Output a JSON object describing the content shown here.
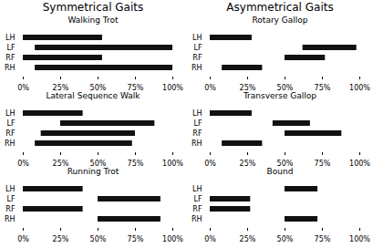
{
  "chart_data": [
    {
      "type": "bar",
      "orientation": "horizontal",
      "subtitle": "Symmetrical Gaits",
      "title": "Walking Trot",
      "categories": [
        "LH",
        "LF",
        "RF",
        "RH"
      ],
      "values": [
        [
          0,
          53
        ],
        [
          8,
          100
        ],
        [
          0,
          53
        ],
        [
          8,
          100
        ]
      ],
      "color": "#111111",
      "xlim": [
        0,
        100
      ],
      "xticks": [
        {
          "value": 0,
          "label": "0%"
        },
        {
          "value": 25,
          "label": "25%"
        },
        {
          "value": 50,
          "label": "50%"
        },
        {
          "value": 75,
          "label": "75%"
        },
        {
          "value": 100,
          "label": "100%"
        }
      ],
      "grid": false
    },
    {
      "type": "bar",
      "orientation": "horizontal",
      "subtitle": "Asymmetrical Gaits",
      "title": "Rotary Gallop",
      "categories": [
        "LH",
        "LF",
        "RF",
        "RH"
      ],
      "values": [
        [
          0,
          28
        ],
        [
          62,
          98
        ],
        [
          50,
          77
        ],
        [
          8,
          35
        ]
      ],
      "color": "#111111",
      "xlim": [
        0,
        100
      ],
      "xticks": [
        {
          "value": 0,
          "label": "0%"
        },
        {
          "value": 25,
          "label": "25%"
        },
        {
          "value": 50,
          "label": "50%"
        },
        {
          "value": 75,
          "label": "75%"
        },
        {
          "value": 100,
          "label": "100%"
        }
      ],
      "grid": false
    },
    {
      "type": "bar",
      "orientation": "horizontal",
      "title": "Lateral Sequence Walk",
      "categories": [
        "LH",
        "LF",
        "RF",
        "RH"
      ],
      "values": [
        [
          0,
          40
        ],
        [
          25,
          88
        ],
        [
          12,
          75
        ],
        [
          8,
          73
        ]
      ],
      "color": "#111111",
      "xlim": [
        0,
        100
      ],
      "xticks": [
        {
          "value": 0,
          "label": "0%"
        },
        {
          "value": 25,
          "label": "25%"
        },
        {
          "value": 50,
          "label": "50%"
        },
        {
          "value": 75,
          "label": "75%"
        },
        {
          "value": 100,
          "label": "100%"
        }
      ],
      "grid": false
    },
    {
      "type": "bar",
      "orientation": "horizontal",
      "title": "Transverse Gallop",
      "categories": [
        "LH",
        "LF",
        "RF",
        "RH"
      ],
      "values": [
        [
          0,
          28
        ],
        [
          42,
          67
        ],
        [
          50,
          88
        ],
        [
          8,
          35
        ]
      ],
      "color": "#111111",
      "xlim": [
        0,
        100
      ],
      "xticks": [
        {
          "value": 0,
          "label": "0%"
        },
        {
          "value": 25,
          "label": "25%"
        },
        {
          "value": 50,
          "label": "50%"
        },
        {
          "value": 75,
          "label": "75%"
        },
        {
          "value": 100,
          "label": "100%"
        }
      ],
      "grid": false
    },
    {
      "type": "bar",
      "orientation": "horizontal",
      "title": "Running Trot",
      "categories": [
        "LH",
        "LF",
        "RF",
        "RH"
      ],
      "values": [
        [
          0,
          40
        ],
        [
          50,
          92
        ],
        [
          0,
          40
        ],
        [
          50,
          92
        ]
      ],
      "color": "#111111",
      "xlim": [
        0,
        100
      ],
      "xticks": [
        {
          "value": 0,
          "label": "0%"
        },
        {
          "value": 25,
          "label": "25%"
        },
        {
          "value": 50,
          "label": "50%"
        },
        {
          "value": 75,
          "label": "75%"
        },
        {
          "value": 100,
          "label": "100%"
        }
      ],
      "grid": false
    },
    {
      "type": "bar",
      "orientation": "horizontal",
      "title": "Bound",
      "categories": [
        "LH",
        "LF",
        "RF",
        "RH"
      ],
      "values": [
        [
          50,
          72
        ],
        [
          0,
          27
        ],
        [
          0,
          27
        ],
        [
          50,
          72
        ]
      ],
      "color": "#111111",
      "xlim": [
        0,
        100
      ],
      "xticks": [
        {
          "value": 0,
          "label": "0%"
        },
        {
          "value": 25,
          "label": "25%"
        },
        {
          "value": 50,
          "label": "50%"
        },
        {
          "value": 75,
          "label": "75%"
        },
        {
          "value": 100,
          "label": "100%"
        }
      ],
      "grid": false
    }
  ]
}
